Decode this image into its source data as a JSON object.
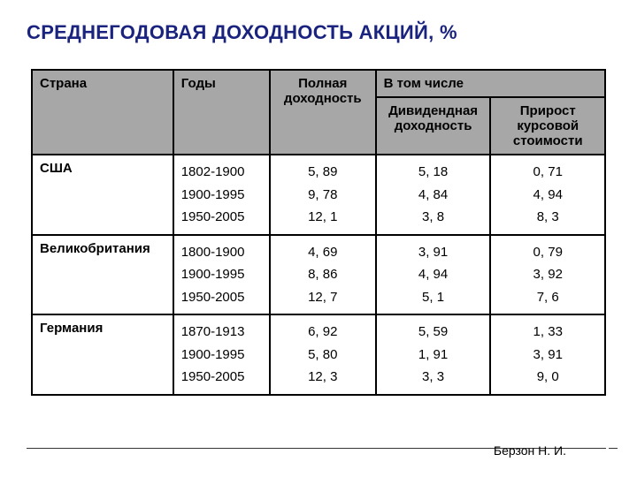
{
  "title": "СРЕДНЕГОДОВАЯ ДОХОДНОСТЬ АКЦИЙ, %",
  "headers": {
    "country": "Страна",
    "years": "Годы",
    "full": "Полная доходность",
    "including": "В том числе",
    "dividend": "Дивидендная доходность",
    "growth": "Прирост курсовой стоимости"
  },
  "rows": [
    {
      "country": "США",
      "years": [
        "1802-1900",
        "1900-1995",
        "1950-2005"
      ],
      "full": [
        "5, 89",
        "9, 78",
        "12, 1"
      ],
      "dividend": [
        "5, 18",
        "4, 84",
        "3, 8"
      ],
      "growth": [
        "0, 71",
        "4, 94",
        "8, 3"
      ]
    },
    {
      "country": "Великобритания",
      "years": [
        "1800-1900",
        "1900-1995",
        "1950-2005"
      ],
      "full": [
        "4, 69",
        "8, 86",
        "12, 7"
      ],
      "dividend": [
        "3, 91",
        "4, 94",
        "5, 1"
      ],
      "growth": [
        "0, 79",
        "3, 92",
        "7, 6"
      ]
    },
    {
      "country": "Германия",
      "years": [
        "1870-1913",
        "1900-1995",
        "1950-2005"
      ],
      "full": [
        "6, 92",
        "5, 80",
        "12, 3"
      ],
      "dividend": [
        "5, 59",
        "1, 91",
        "3, 3"
      ],
      "growth": [
        "1, 33",
        "3, 91",
        "9, 0"
      ]
    }
  ],
  "footer": "Берзон Н. И.",
  "styling": {
    "slide_size": [
      720,
      540
    ],
    "title_color": "#1a237e",
    "title_fontsize": 22,
    "header_bg": "#a7a7a7",
    "border_color": "#000000",
    "border_width": 2,
    "body_fontsize": 15,
    "font_family": "Arial",
    "col_widths": {
      "country": 160,
      "years": 110,
      "full": 120,
      "dividend": 130,
      "growth": 130
    }
  }
}
